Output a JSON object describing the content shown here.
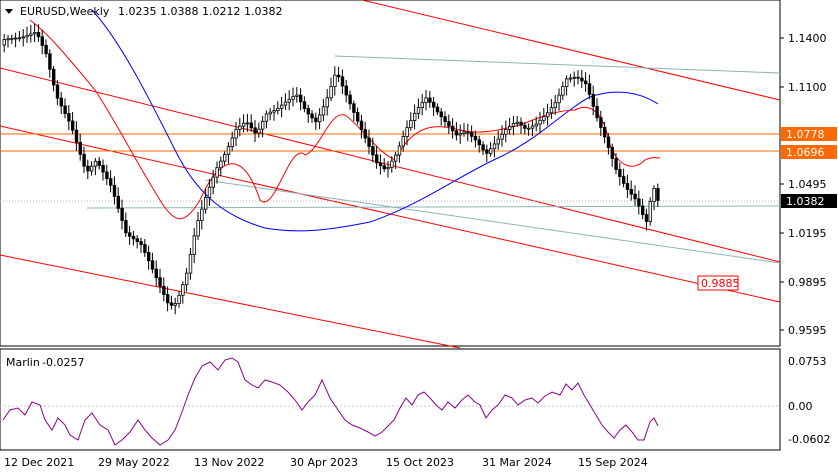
{
  "header": {
    "symbol": "EURUSD,Weekly",
    "ohlc": "1.0235 1.0388 1.0212 1.0382",
    "menu_icon": "dropdown-triangle-icon"
  },
  "price_axis": {
    "labels": [
      "1.1400",
      "1.1100",
      "1.0495",
      "1.0195",
      "0.9895",
      "0.9595"
    ],
    "current_price": "1.0382",
    "level_1": "1.0778",
    "level_2": "1.0696",
    "target": "0.9885"
  },
  "indicator": {
    "name": "Marlin",
    "value": "-0.0257",
    "axis_labels": [
      "0.0753",
      "0.00",
      "-0.0602"
    ]
  },
  "time_axis": {
    "labels": [
      "12 Dec 2021",
      "29 May 2022",
      "13 Nov 2022",
      "30 Apr 2023",
      "15 Oct 2023",
      "31 Mar 2024",
      "15 Sep 2024"
    ]
  },
  "colors": {
    "candle": "#000000",
    "ma_red": "#ff0000",
    "ma_blue": "#0000ff",
    "channel_red": "#ff0000",
    "channel_teal": "#8cb4b4",
    "level_orange": "#ff6a00",
    "oscillator": "#8b008b",
    "grid": "#c8c8c8",
    "axis": "#000000"
  }
}
